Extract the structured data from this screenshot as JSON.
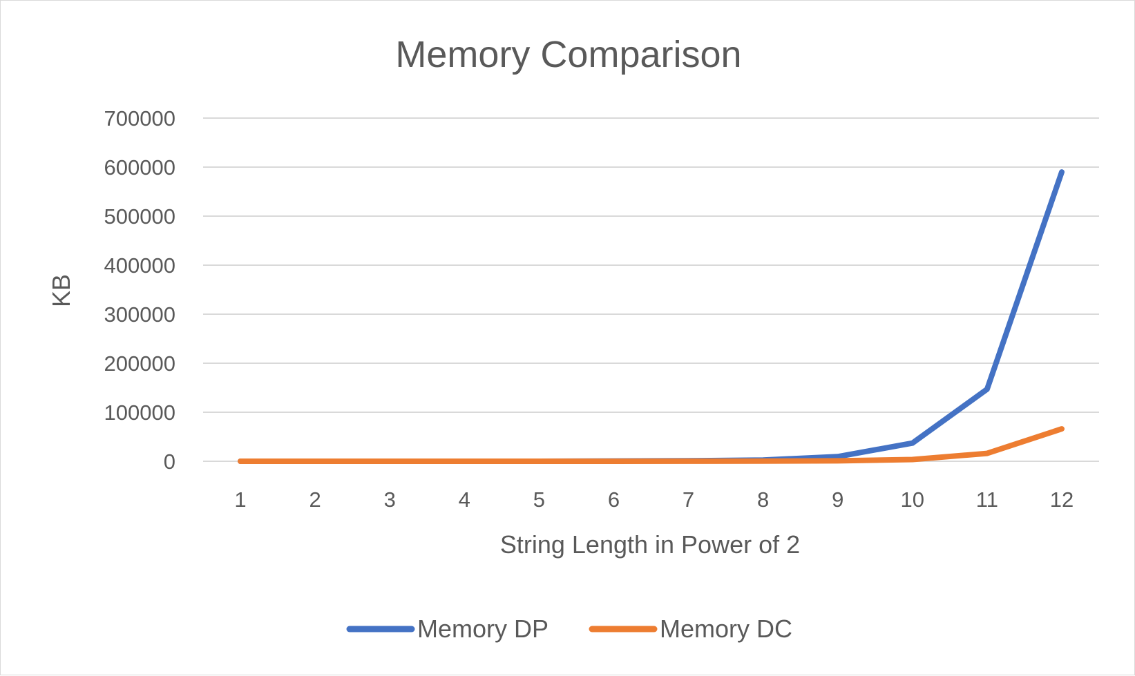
{
  "chart_data": {
    "type": "line",
    "title": "Memory Comparison",
    "xlabel": "String Length in Power of 2",
    "ylabel": "KB",
    "categories": [
      "1",
      "2",
      "3",
      "4",
      "5",
      "6",
      "7",
      "8",
      "9",
      "10",
      "11",
      "12"
    ],
    "yticks": [
      "0",
      "100000",
      "200000",
      "300000",
      "400000",
      "500000",
      "600000",
      "700000"
    ],
    "ylim": [
      0,
      700000
    ],
    "grid": true,
    "legend_position": "bottom",
    "series": [
      {
        "name": "Memory DP",
        "color": "#4472C4",
        "values": [
          0,
          0,
          0,
          0,
          0,
          600,
          1000,
          2500,
          9500,
          37000,
          147000,
          590000
        ]
      },
      {
        "name": "Memory DC",
        "color": "#ED7D31",
        "values": [
          0,
          0,
          0,
          0,
          0,
          0,
          100,
          300,
          800,
          3500,
          16000,
          66000
        ]
      }
    ]
  }
}
